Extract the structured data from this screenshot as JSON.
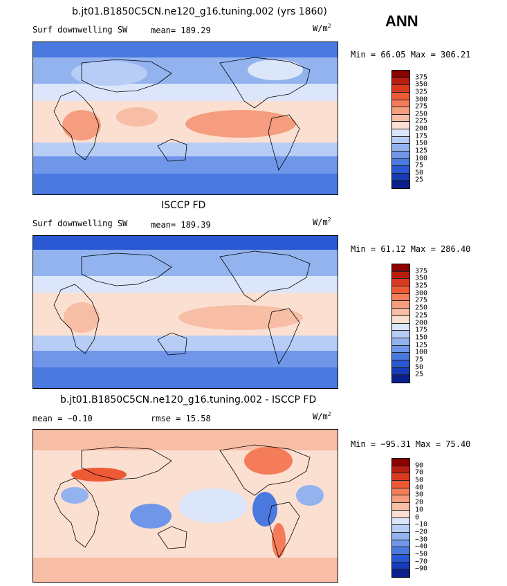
{
  "season": "ANN",
  "panels": [
    {
      "title": "b.jt01.B1850C5CN.ne120_g16.tuning.002 (yrs 1860)",
      "variable": "Surf downwelling SW",
      "stat1": "mean= 189.29",
      "stat2": "",
      "units": "W/m",
      "units_sup": "2",
      "minmax": "Min =  66.05 Max = 306.21",
      "colorbar": {
        "labels": [
          "375",
          "350",
          "325",
          "300",
          "275",
          "250",
          "225",
          "200",
          "175",
          "150",
          "125",
          "100",
          "75",
          "50",
          "25"
        ],
        "colors": [
          "#8b0000",
          "#b81d10",
          "#d93a1f",
          "#ee5a34",
          "#f47c58",
          "#f59d7e",
          "#f7bda5",
          "#fbe0d2",
          "#dbe6fa",
          "#b8cdf5",
          "#93b3ef",
          "#6f96e8",
          "#4a79e0",
          "#2a57d2",
          "#163bb7",
          "#0a1e8c"
        ]
      }
    },
    {
      "title": "ISCCP FD",
      "variable": "Surf downwelling SW",
      "stat1": "mean= 189.39",
      "stat2": "",
      "units": "W/m",
      "units_sup": "2",
      "minmax": "Min =  61.12 Max = 286.40",
      "colorbar": {
        "labels": [
          "375",
          "350",
          "325",
          "300",
          "275",
          "250",
          "225",
          "200",
          "175",
          "150",
          "125",
          "100",
          "75",
          "50",
          "25"
        ],
        "colors": [
          "#8b0000",
          "#b81d10",
          "#d93a1f",
          "#ee5a34",
          "#f47c58",
          "#f59d7e",
          "#f7bda5",
          "#fbe0d2",
          "#dbe6fa",
          "#b8cdf5",
          "#93b3ef",
          "#6f96e8",
          "#4a79e0",
          "#2a57d2",
          "#163bb7",
          "#0a1e8c"
        ]
      }
    },
    {
      "title": "b.jt01.B1850C5CN.ne120_g16.tuning.002 - ISCCP FD",
      "variable": "",
      "stat1": "mean =  −0.10",
      "stat2": "rmse =  15.58",
      "units": "W/m",
      "units_sup": "2",
      "minmax": "Min = −95.31 Max =  75.40",
      "colorbar": {
        "labels": [
          "90",
          "70",
          "50",
          "40",
          "30",
          "20",
          "10",
          "0",
          "−10",
          "−20",
          "−30",
          "−40",
          "−50",
          "−70",
          "−90"
        ],
        "colors": [
          "#8b0000",
          "#b81d10",
          "#d93a1f",
          "#ee5a34",
          "#f47c58",
          "#f59d7e",
          "#f7bda5",
          "#fbe0d2",
          "#dbe6fa",
          "#b8cdf5",
          "#93b3ef",
          "#6f96e8",
          "#4a79e0",
          "#2a57d2",
          "#163bb7",
          "#0a1e8c"
        ]
      }
    }
  ]
}
